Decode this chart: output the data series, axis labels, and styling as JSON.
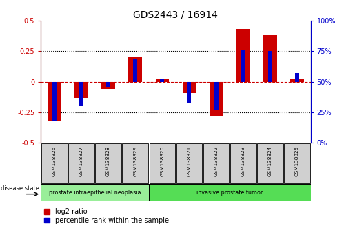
{
  "title": "GDS2443 / 16914",
  "samples": [
    "GSM138326",
    "GSM138327",
    "GSM138328",
    "GSM138329",
    "GSM138320",
    "GSM138321",
    "GSM138322",
    "GSM138323",
    "GSM138324",
    "GSM138325"
  ],
  "log2_ratio": [
    -0.32,
    -0.13,
    -0.06,
    0.2,
    0.02,
    -0.09,
    -0.28,
    0.43,
    0.38,
    0.02
  ],
  "percentile_rank": [
    18,
    30,
    46,
    69,
    52,
    33,
    27,
    76,
    75,
    57
  ],
  "ylim_left": [
    -0.5,
    0.5
  ],
  "yticks_left": [
    -0.5,
    -0.25,
    0.0,
    0.25,
    0.5
  ],
  "ytick_labels_left": [
    "-0.5",
    "-0.25",
    "0",
    "0.25",
    "0.5"
  ],
  "ytick_labels_right": [
    "0%",
    "25%",
    "50%",
    "75%",
    "100%"
  ],
  "red_color": "#cc0000",
  "blue_color": "#0000cc",
  "group1_label": "prostate intraepithelial neoplasia",
  "group2_label": "invasive prostate tumor",
  "group1_count": 4,
  "group2_count": 6,
  "disease_state_label": "disease state",
  "legend_red": "log2 ratio",
  "legend_blue": "percentile rank within the sample",
  "group1_color": "#99ee99",
  "group2_color": "#55dd55",
  "sample_box_color": "#d0d0d0",
  "background_color": "#ffffff",
  "left_ylabel_color": "#cc0000",
  "right_ylabel_color": "#0000cc",
  "bar_width": 0.5,
  "blue_bar_width": 0.15
}
